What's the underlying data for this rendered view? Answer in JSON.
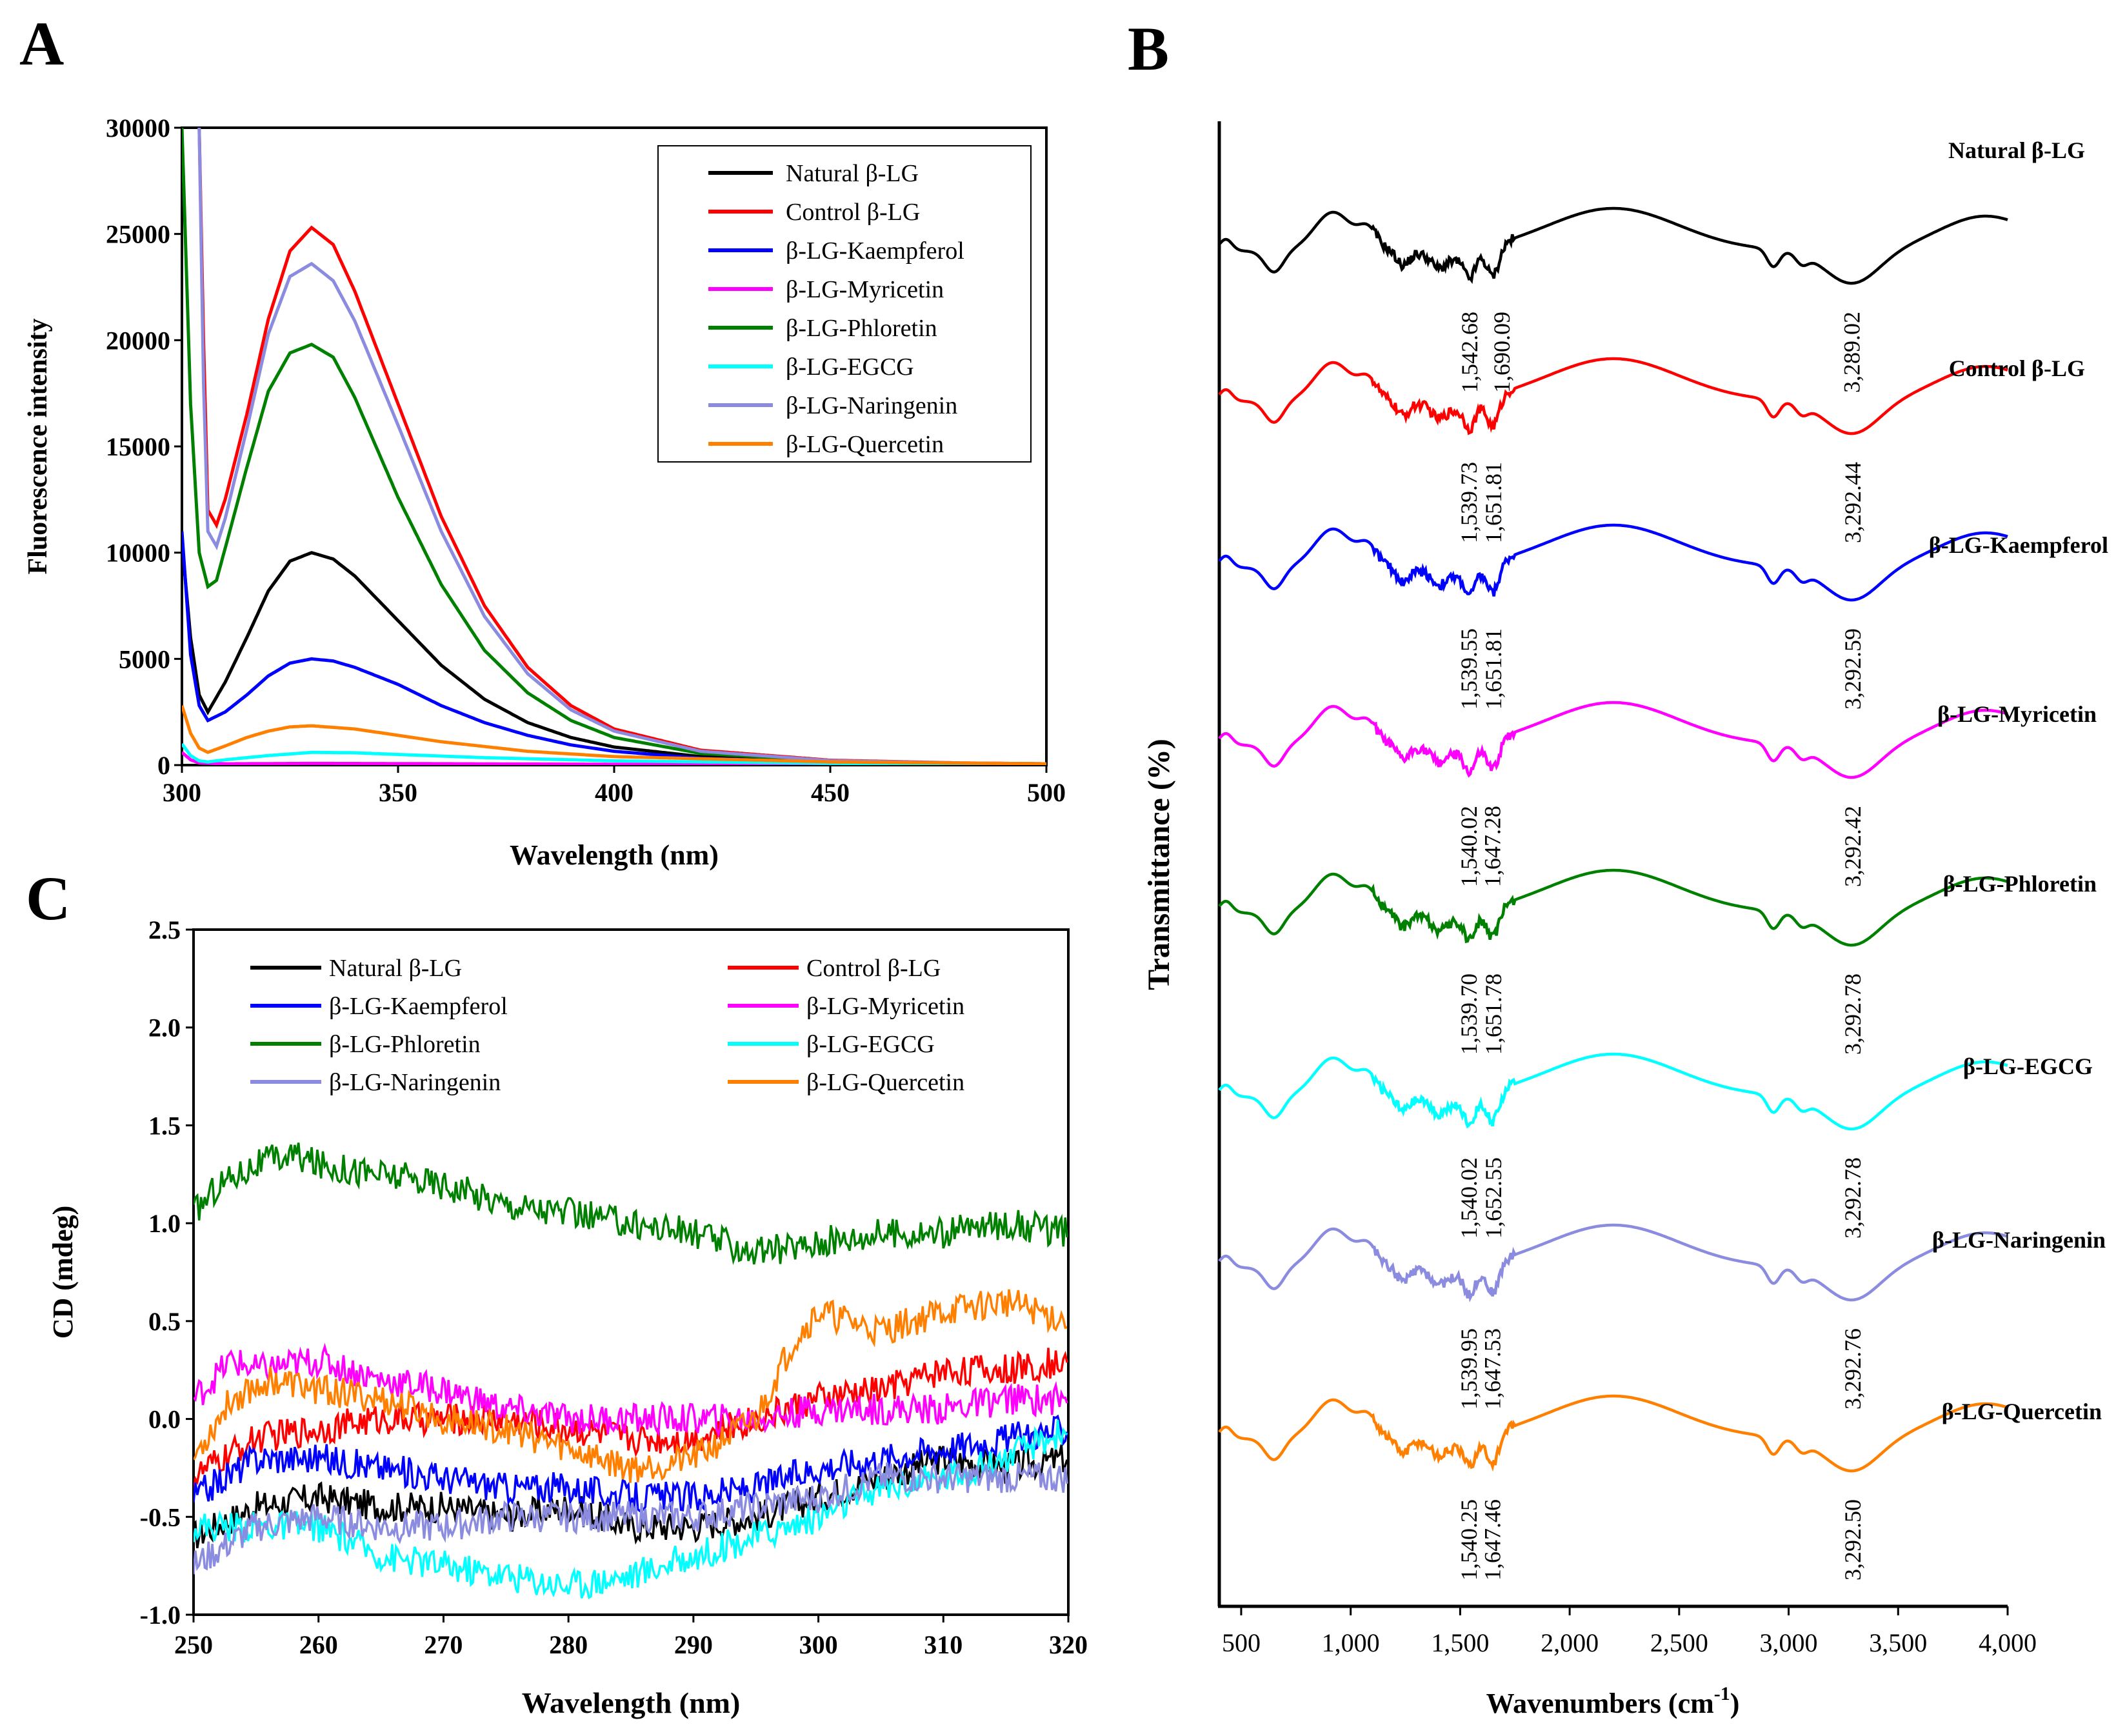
{
  "panels": {
    "A": {
      "letter": "A",
      "chart_data": {
        "type": "line",
        "title": "",
        "xlabel": "Wavelength (nm)",
        "ylabel": "Fluorescence intensity",
        "xlim": [
          300,
          500
        ],
        "ylim": [
          0,
          30000
        ],
        "xticks": [
          300,
          350,
          400,
          450,
          500
        ],
        "yticks": [
          0,
          5000,
          10000,
          15000,
          20000,
          25000,
          30000
        ],
        "legend": "top-right",
        "series": [
          {
            "name": "Natural β-LG",
            "color": "#000000",
            "x": [
              300,
              302,
              304,
              306,
              310,
              315,
              320,
              325,
              330,
              335,
              340,
              350,
              360,
              370,
              380,
              390,
              400,
              420,
              450,
              480,
              500
            ],
            "y": [
              10500,
              6000,
              3300,
              2500,
              3900,
              6000,
              8200,
              9600,
              10000,
              9700,
              8900,
              6800,
              4700,
              3100,
              2000,
              1300,
              850,
              400,
              170,
              80,
              50
            ]
          },
          {
            "name": "Control β-LG",
            "color": "#ff0000",
            "x": [
              304,
              305,
              306,
              308,
              310,
              315,
              320,
              325,
              330,
              335,
              340,
              350,
              360,
              370,
              380,
              390,
              400,
              420,
              450,
              480,
              500
            ],
            "y": [
              30000,
              20000,
              12000,
              11300,
              12500,
              16500,
              21000,
              24200,
              25300,
              24500,
              22300,
              17000,
              11700,
              7500,
              4600,
              2800,
              1700,
              700,
              230,
              100,
              60
            ]
          },
          {
            "name": "β-LG-Kaempferol",
            "color": "#0000ff",
            "x": [
              300,
              302,
              304,
              306,
              310,
              315,
              320,
              325,
              330,
              335,
              340,
              350,
              360,
              370,
              380,
              390,
              400,
              420,
              450,
              480,
              500
            ],
            "y": [
              11000,
              5200,
              2800,
              2100,
              2500,
              3300,
              4200,
              4800,
              5000,
              4900,
              4600,
              3800,
              2800,
              2000,
              1400,
              950,
              650,
              320,
              130,
              60,
              40
            ]
          },
          {
            "name": "β-LG-Myricetin",
            "color": "#ff00ff",
            "x": [
              300,
              302,
              304,
              310,
              330,
              350,
              400,
              450,
              500
            ],
            "y": [
              600,
              250,
              100,
              60,
              80,
              70,
              40,
              20,
              10
            ]
          },
          {
            "name": "β-LG-Phloretin",
            "color": "#008000",
            "x": [
              300,
              302,
              304,
              306,
              308,
              310,
              315,
              320,
              325,
              330,
              335,
              340,
              350,
              360,
              370,
              380,
              390,
              400,
              420,
              450,
              480,
              500
            ],
            "y": [
              30000,
              17000,
              10000,
              8400,
              8700,
              10200,
              14000,
              17600,
              19400,
              19800,
              19200,
              17300,
              12600,
              8500,
              5400,
              3400,
              2100,
              1300,
              550,
              200,
              90,
              60
            ]
          },
          {
            "name": "β-LG-EGCG",
            "color": "#00ffff",
            "x": [
              300,
              302,
              304,
              306,
              310,
              320,
              330,
              340,
              350,
              370,
              400,
              450,
              500
            ],
            "y": [
              1000,
              450,
              200,
              150,
              250,
              450,
              600,
              580,
              500,
              350,
              200,
              80,
              30
            ]
          },
          {
            "name": "β-LG-Naringenin",
            "color": "#8b8be0",
            "x": [
              304,
              305,
              306,
              308,
              310,
              315,
              320,
              325,
              330,
              335,
              340,
              350,
              360,
              370,
              380,
              390,
              400,
              420,
              450,
              480,
              500
            ],
            "y": [
              30000,
              18000,
              11000,
              10300,
              11600,
              15800,
              20300,
              23000,
              23600,
              22800,
              20900,
              16000,
              11000,
              7000,
              4300,
              2600,
              1600,
              650,
              210,
              90,
              50
            ]
          },
          {
            "name": "β-LG-Quercetin",
            "color": "#ff8000",
            "x": [
              300,
              302,
              304,
              306,
              310,
              315,
              320,
              325,
              330,
              340,
              350,
              360,
              380,
              400,
              450,
              500
            ],
            "y": [
              2800,
              1500,
              800,
              600,
              900,
              1300,
              1600,
              1800,
              1850,
              1700,
              1400,
              1100,
              650,
              400,
              150,
              60
            ]
          }
        ]
      }
    },
    "B": {
      "letter": "B",
      "chart_data": {
        "type": "line",
        "title": "",
        "xlabel": "Wavenumbers (cm",
        "xlabel_sup": "-1",
        "xlabel_close": ")",
        "ylabel": "Transmittance (%)",
        "xlim": [
          400,
          4000
        ],
        "xticks": [
          500,
          1000,
          1500,
          2000,
          2500,
          3000,
          3500,
          4000
        ],
        "xticklabels": [
          "500",
          "1,000",
          "1,500",
          "2,000",
          "2,500",
          "3,000",
          "3,500",
          "4,000"
        ],
        "legend": "inline labels at right",
        "stacked_offsets": true,
        "series": [
          {
            "name": "Natural β-LG",
            "color": "#000000",
            "peaks": [
              {
                "x": 1542.68,
                "label": "1,542.68"
              },
              {
                "x": 1690.09,
                "label": "1,690.09"
              },
              {
                "x": 3289.02,
                "label": "3,289.02"
              }
            ]
          },
          {
            "name": "Control β-LG",
            "color": "#ff0000",
            "peaks": [
              {
                "x": 1539.73,
                "label": "1,539.73"
              },
              {
                "x": 1651.81,
                "label": "1,651.81"
              },
              {
                "x": 3292.44,
                "label": "3,292.44"
              }
            ]
          },
          {
            "name": "β-LG-Kaempferol",
            "color": "#0000ff",
            "peaks": [
              {
                "x": 1539.55,
                "label": "1,539.55"
              },
              {
                "x": 1651.81,
                "label": "1,651.81"
              },
              {
                "x": 3292.59,
                "label": "3,292.59"
              }
            ]
          },
          {
            "name": "β-LG-Myricetin",
            "color": "#ff00ff",
            "peaks": [
              {
                "x": 1540.02,
                "label": "1,540.02"
              },
              {
                "x": 1647.28,
                "label": "1,647.28"
              },
              {
                "x": 3292.42,
                "label": "3,292.42"
              }
            ]
          },
          {
            "name": "β-LG-Phloretin",
            "color": "#008000",
            "peaks": [
              {
                "x": 1539.7,
                "label": "1,539.70"
              },
              {
                "x": 1651.78,
                "label": "1,651.78"
              },
              {
                "x": 3292.78,
                "label": "3,292.78"
              }
            ]
          },
          {
            "name": "β-LG-EGCG",
            "color": "#00ffff",
            "peaks": [
              {
                "x": 1540.02,
                "label": "1,540.02"
              },
              {
                "x": 1652.55,
                "label": "1,652.55"
              },
              {
                "x": 3292.78,
                "label": "3,292.78"
              }
            ]
          },
          {
            "name": "β-LG-Naringenin",
            "color": "#8b8be0",
            "peaks": [
              {
                "x": 1539.95,
                "label": "1,539.95"
              },
              {
                "x": 1647.53,
                "label": "1,647.53"
              },
              {
                "x": 3292.76,
                "label": "3,292.76"
              }
            ]
          },
          {
            "name": "β-LG-Quercetin",
            "color": "#ff8000",
            "peaks": [
              {
                "x": 1540.25,
                "label": "1,540.25"
              },
              {
                "x": 1647.46,
                "label": "1,647.46"
              },
              {
                "x": 3292.5,
                "label": "3,292.50"
              }
            ]
          }
        ]
      }
    },
    "C": {
      "letter": "C",
      "chart_data": {
        "type": "line",
        "title": "",
        "xlabel": "Wavelength (nm)",
        "ylabel": "CD (mdeg)",
        "xlim": [
          250,
          320
        ],
        "ylim": [
          -1.0,
          2.5
        ],
        "xticks": [
          250,
          260,
          270,
          280,
          290,
          300,
          310,
          320
        ],
        "yticks": [
          -1.0,
          -0.5,
          0.0,
          0.5,
          1.0,
          1.5,
          2.0,
          2.5
        ],
        "yticklabels": [
          "-1.0",
          "-0.5",
          "0.0",
          "0.5",
          "1.0",
          "1.5",
          "2.0",
          "2.5"
        ],
        "legend": "top, two columns",
        "series": [
          {
            "name": "Natural β-LG",
            "color": "#000000",
            "x": [
              250,
              255,
              260,
              265,
              270,
              275,
              280,
              285,
              290,
              295,
              300,
              305,
              310,
              315,
              320
            ],
            "y": [
              -0.6,
              -0.45,
              -0.4,
              -0.45,
              -0.45,
              -0.5,
              -0.45,
              -0.55,
              -0.55,
              -0.5,
              -0.4,
              -0.3,
              -0.2,
              -0.25,
              -0.2
            ]
          },
          {
            "name": "Control β-LG",
            "color": "#ff0000",
            "x": [
              250,
              255,
              260,
              265,
              270,
              275,
              280,
              285,
              290,
              295,
              300,
              305,
              310,
              315,
              320
            ],
            "y": [
              -0.3,
              -0.1,
              -0.05,
              0.0,
              0.0,
              0.0,
              -0.05,
              -0.1,
              -0.1,
              0.0,
              0.1,
              0.15,
              0.25,
              0.25,
              0.3
            ]
          },
          {
            "name": "β-LG-Kaempferol",
            "color": "#0000ff",
            "x": [
              250,
              255,
              260,
              265,
              270,
              275,
              280,
              285,
              290,
              295,
              300,
              305,
              310,
              315,
              320
            ],
            "y": [
              -0.4,
              -0.2,
              -0.2,
              -0.25,
              -0.3,
              -0.35,
              -0.35,
              -0.4,
              -0.4,
              -0.35,
              -0.25,
              -0.2,
              -0.15,
              -0.1,
              -0.05
            ]
          },
          {
            "name": "β-LG-Myricetin",
            "color": "#ff00ff",
            "x": [
              250,
              253,
              255,
              260,
              265,
              270,
              275,
              280,
              285,
              290,
              295,
              300,
              305,
              310,
              315,
              320
            ],
            "y": [
              0.1,
              0.3,
              0.25,
              0.3,
              0.2,
              0.15,
              0.05,
              0.0,
              0.0,
              0.0,
              0.0,
              0.05,
              0.05,
              0.05,
              0.1,
              0.1
            ]
          },
          {
            "name": "β-LG-Phloretin",
            "color": "#008000",
            "x": [
              250,
              252,
              255,
              258,
              260,
              265,
              270,
              275,
              280,
              285,
              290,
              295,
              300,
              305,
              310,
              315,
              320
            ],
            "y": [
              1.05,
              1.2,
              1.3,
              1.35,
              1.3,
              1.25,
              1.2,
              1.1,
              1.05,
              1.0,
              0.95,
              0.85,
              0.9,
              0.95,
              0.95,
              1.0,
              0.95
            ]
          },
          {
            "name": "β-LG-EGCG",
            "color": "#00ffff",
            "x": [
              250,
              255,
              260,
              265,
              270,
              275,
              280,
              285,
              290,
              295,
              300,
              305,
              310,
              315,
              320
            ],
            "y": [
              -0.55,
              -0.55,
              -0.55,
              -0.7,
              -0.75,
              -0.8,
              -0.85,
              -0.8,
              -0.7,
              -0.6,
              -0.5,
              -0.35,
              -0.3,
              -0.2,
              -0.05
            ]
          },
          {
            "name": "β-LG-Naringenin",
            "color": "#8b8be0",
            "x": [
              250,
              255,
              260,
              265,
              270,
              275,
              280,
              285,
              290,
              295,
              300,
              305,
              310,
              315,
              320
            ],
            "y": [
              -0.75,
              -0.55,
              -0.5,
              -0.55,
              -0.55,
              -0.5,
              -0.5,
              -0.5,
              -0.5,
              -0.45,
              -0.4,
              -0.3,
              -0.3,
              -0.3,
              -0.3
            ]
          },
          {
            "name": "β-LG-Quercetin",
            "color": "#ff8000",
            "x": [
              250,
              253,
              256,
              260,
              265,
              270,
              275,
              280,
              285,
              290,
              295,
              298,
              300,
              305,
              310,
              315,
              320
            ],
            "y": [
              -0.2,
              0.1,
              0.2,
              0.15,
              0.1,
              0.0,
              -0.05,
              -0.15,
              -0.25,
              -0.2,
              0.0,
              0.4,
              0.55,
              0.45,
              0.55,
              0.6,
              0.5
            ]
          }
        ]
      }
    }
  }
}
